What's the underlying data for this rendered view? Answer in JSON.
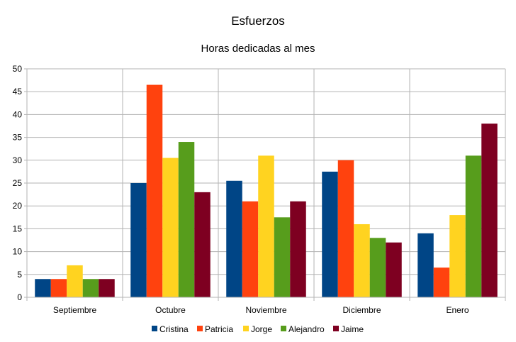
{
  "chart_data": {
    "type": "bar",
    "title": "Esfuerzos",
    "subtitle": "Horas dedicadas al mes",
    "xlabel": "",
    "ylabel": "",
    "ylim": [
      0,
      50
    ],
    "yticks": [
      0,
      5,
      10,
      15,
      20,
      25,
      30,
      35,
      40,
      45,
      50
    ],
    "grid": true,
    "legend_position": "bottom",
    "categories": [
      "Septiembre",
      "Octubre",
      "Noviembre",
      "Diciembre",
      "Enero"
    ],
    "series": [
      {
        "name": "Cristina",
        "color": "#004586",
        "values": [
          4,
          25,
          25.5,
          27.5,
          14
        ]
      },
      {
        "name": "Patricia",
        "color": "#ff420e",
        "values": [
          4,
          46.5,
          21,
          30,
          6.5
        ]
      },
      {
        "name": "Jorge",
        "color": "#ffd320",
        "values": [
          7,
          30.5,
          31,
          16,
          18
        ]
      },
      {
        "name": "Alejandro",
        "color": "#579d1c",
        "values": [
          4,
          34,
          17.5,
          13,
          31
        ]
      },
      {
        "name": "Jaime",
        "color": "#7e0021",
        "values": [
          4,
          23,
          21,
          12,
          38
        ]
      }
    ]
  }
}
